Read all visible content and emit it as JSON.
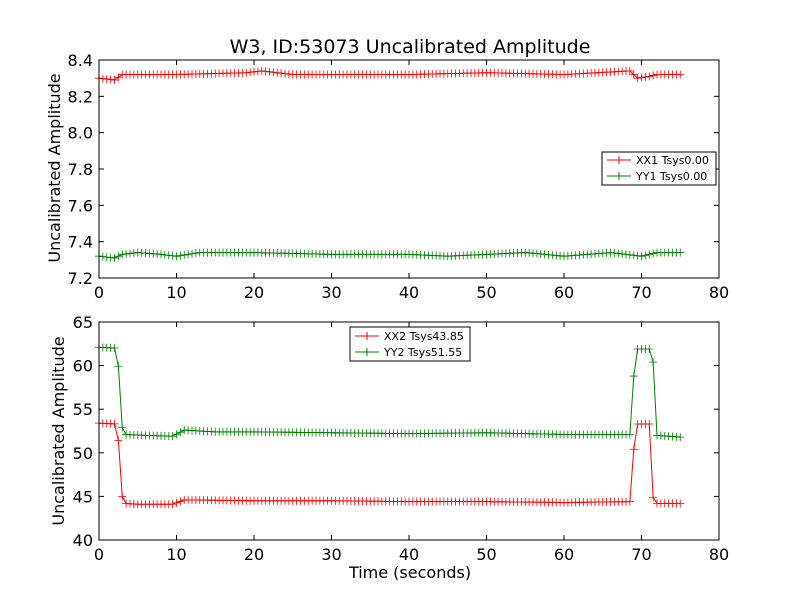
{
  "chart_data": [
    {
      "type": "line",
      "title": "W3, ID:53073 Uncalibrated Amplitude",
      "xlabel": "",
      "ylabel": "Uncalibrated Amplitude",
      "xlim": [
        0,
        80
      ],
      "ylim": [
        7.2,
        8.4
      ],
      "xticks": [
        "0",
        "10",
        "20",
        "30",
        "40",
        "50",
        "60",
        "70",
        "80"
      ],
      "yticks": [
        "7.2",
        "7.4",
        "7.6",
        "7.8",
        "8.0",
        "8.2",
        "8.4"
      ],
      "grid": false,
      "legend_position": "right",
      "series": [
        {
          "name": "XX1 Tsys0.00",
          "color": "#ff0000",
          "keypoints": [
            [
              0,
              8.3
            ],
            [
              2,
              8.29
            ],
            [
              3,
              8.32
            ],
            [
              10,
              8.32
            ],
            [
              19,
              8.33
            ],
            [
              21,
              8.34
            ],
            [
              25,
              8.32
            ],
            [
              40,
              8.32
            ],
            [
              50,
              8.33
            ],
            [
              60,
              8.32
            ],
            [
              68.5,
              8.34
            ],
            [
              69.5,
              8.3
            ],
            [
              71,
              8.31
            ],
            [
              72,
              8.32
            ],
            [
              75,
              8.32
            ]
          ]
        },
        {
          "name": "YY1 Tsys0.00",
          "color": "#008000",
          "keypoints": [
            [
              0,
              7.32
            ],
            [
              2,
              7.31
            ],
            [
              3,
              7.33
            ],
            [
              5,
              7.34
            ],
            [
              8,
              7.33
            ],
            [
              10,
              7.32
            ],
            [
              13,
              7.34
            ],
            [
              20,
              7.34
            ],
            [
              30,
              7.33
            ],
            [
              40,
              7.33
            ],
            [
              45,
              7.32
            ],
            [
              50,
              7.33
            ],
            [
              55,
              7.34
            ],
            [
              60,
              7.32
            ],
            [
              66,
              7.34
            ],
            [
              68,
              7.33
            ],
            [
              70,
              7.32
            ],
            [
              72,
              7.34
            ],
            [
              75,
              7.34
            ]
          ]
        }
      ]
    },
    {
      "type": "line",
      "title": "",
      "xlabel": "Time (seconds)",
      "ylabel": "Uncalibrated Amplitude",
      "xlim": [
        0,
        80
      ],
      "ylim": [
        40,
        65
      ],
      "xticks": [
        "0",
        "10",
        "20",
        "30",
        "40",
        "50",
        "60",
        "70",
        "80"
      ],
      "yticks": [
        "40",
        "45",
        "50",
        "55",
        "60",
        "65"
      ],
      "grid": false,
      "legend_position": "top-center",
      "series": [
        {
          "name": "XX2 Tsys43.85",
          "color": "#ff0000",
          "keypoints": [
            [
              0,
              53.4
            ],
            [
              2.4,
              53.3
            ],
            [
              2.8,
              45.8
            ],
            [
              3.2,
              44.2
            ],
            [
              5,
              44.1
            ],
            [
              9.5,
              44.1
            ],
            [
              11,
              44.6
            ],
            [
              20,
              44.5
            ],
            [
              30,
              44.5
            ],
            [
              40,
              44.4
            ],
            [
              50,
              44.4
            ],
            [
              60,
              44.3
            ],
            [
              68.5,
              44.4
            ],
            [
              69,
              50.4
            ],
            [
              69.5,
              53.3
            ],
            [
              71,
              53.3
            ],
            [
              71.5,
              44.9
            ],
            [
              72,
              44.2
            ],
            [
              75,
              44.2
            ]
          ]
        },
        {
          "name": "YY2 Tsys51.55",
          "color": "#008000",
          "keypoints": [
            [
              0,
              62.1
            ],
            [
              2.4,
              62.0
            ],
            [
              2.8,
              53.7
            ],
            [
              3.2,
              52.1
            ],
            [
              6,
              52.0
            ],
            [
              9.5,
              51.9
            ],
            [
              11,
              52.6
            ],
            [
              15,
              52.4
            ],
            [
              20,
              52.4
            ],
            [
              30,
              52.3
            ],
            [
              40,
              52.2
            ],
            [
              50,
              52.3
            ],
            [
              60,
              52.1
            ],
            [
              68.5,
              52.1
            ],
            [
              69,
              58.8
            ],
            [
              69.5,
              61.9
            ],
            [
              71,
              61.9
            ],
            [
              71.5,
              60.4
            ],
            [
              72,
              52.0
            ],
            [
              75,
              51.8
            ]
          ]
        }
      ]
    }
  ]
}
